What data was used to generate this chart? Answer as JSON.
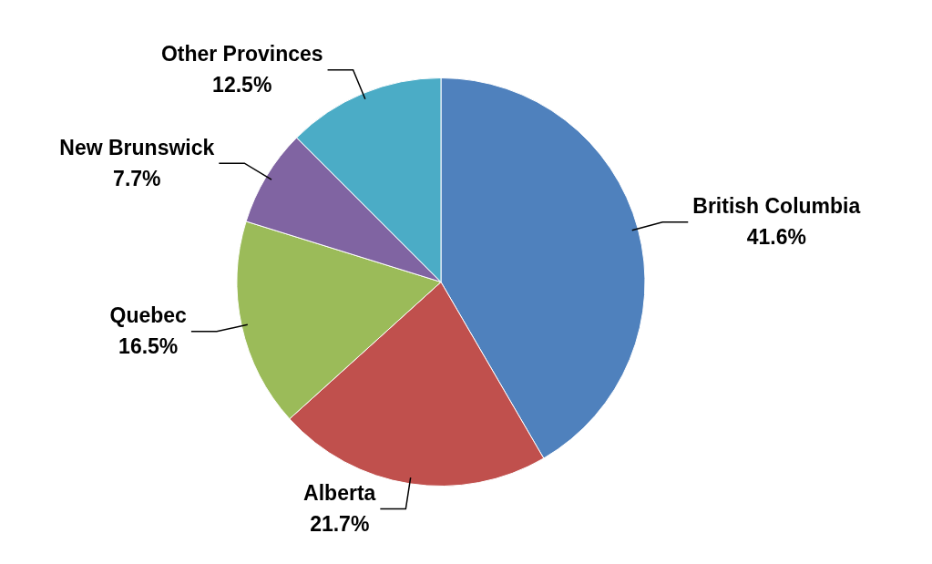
{
  "chart_data": {
    "type": "pie",
    "categories": [
      "British Columbia",
      "Alberta",
      "Quebec",
      "New Brunswick",
      "Other Provinces"
    ],
    "values": [
      41.6,
      21.7,
      16.5,
      7.7,
      12.5
    ],
    "colors": [
      "#4f81bd",
      "#c0504d",
      "#9bbb59",
      "#8064a2",
      "#4bacc6"
    ],
    "value_labels": [
      "41.6%",
      "21.7%",
      "16.5%",
      "7.7%",
      "12.5%"
    ],
    "legend": false
  }
}
